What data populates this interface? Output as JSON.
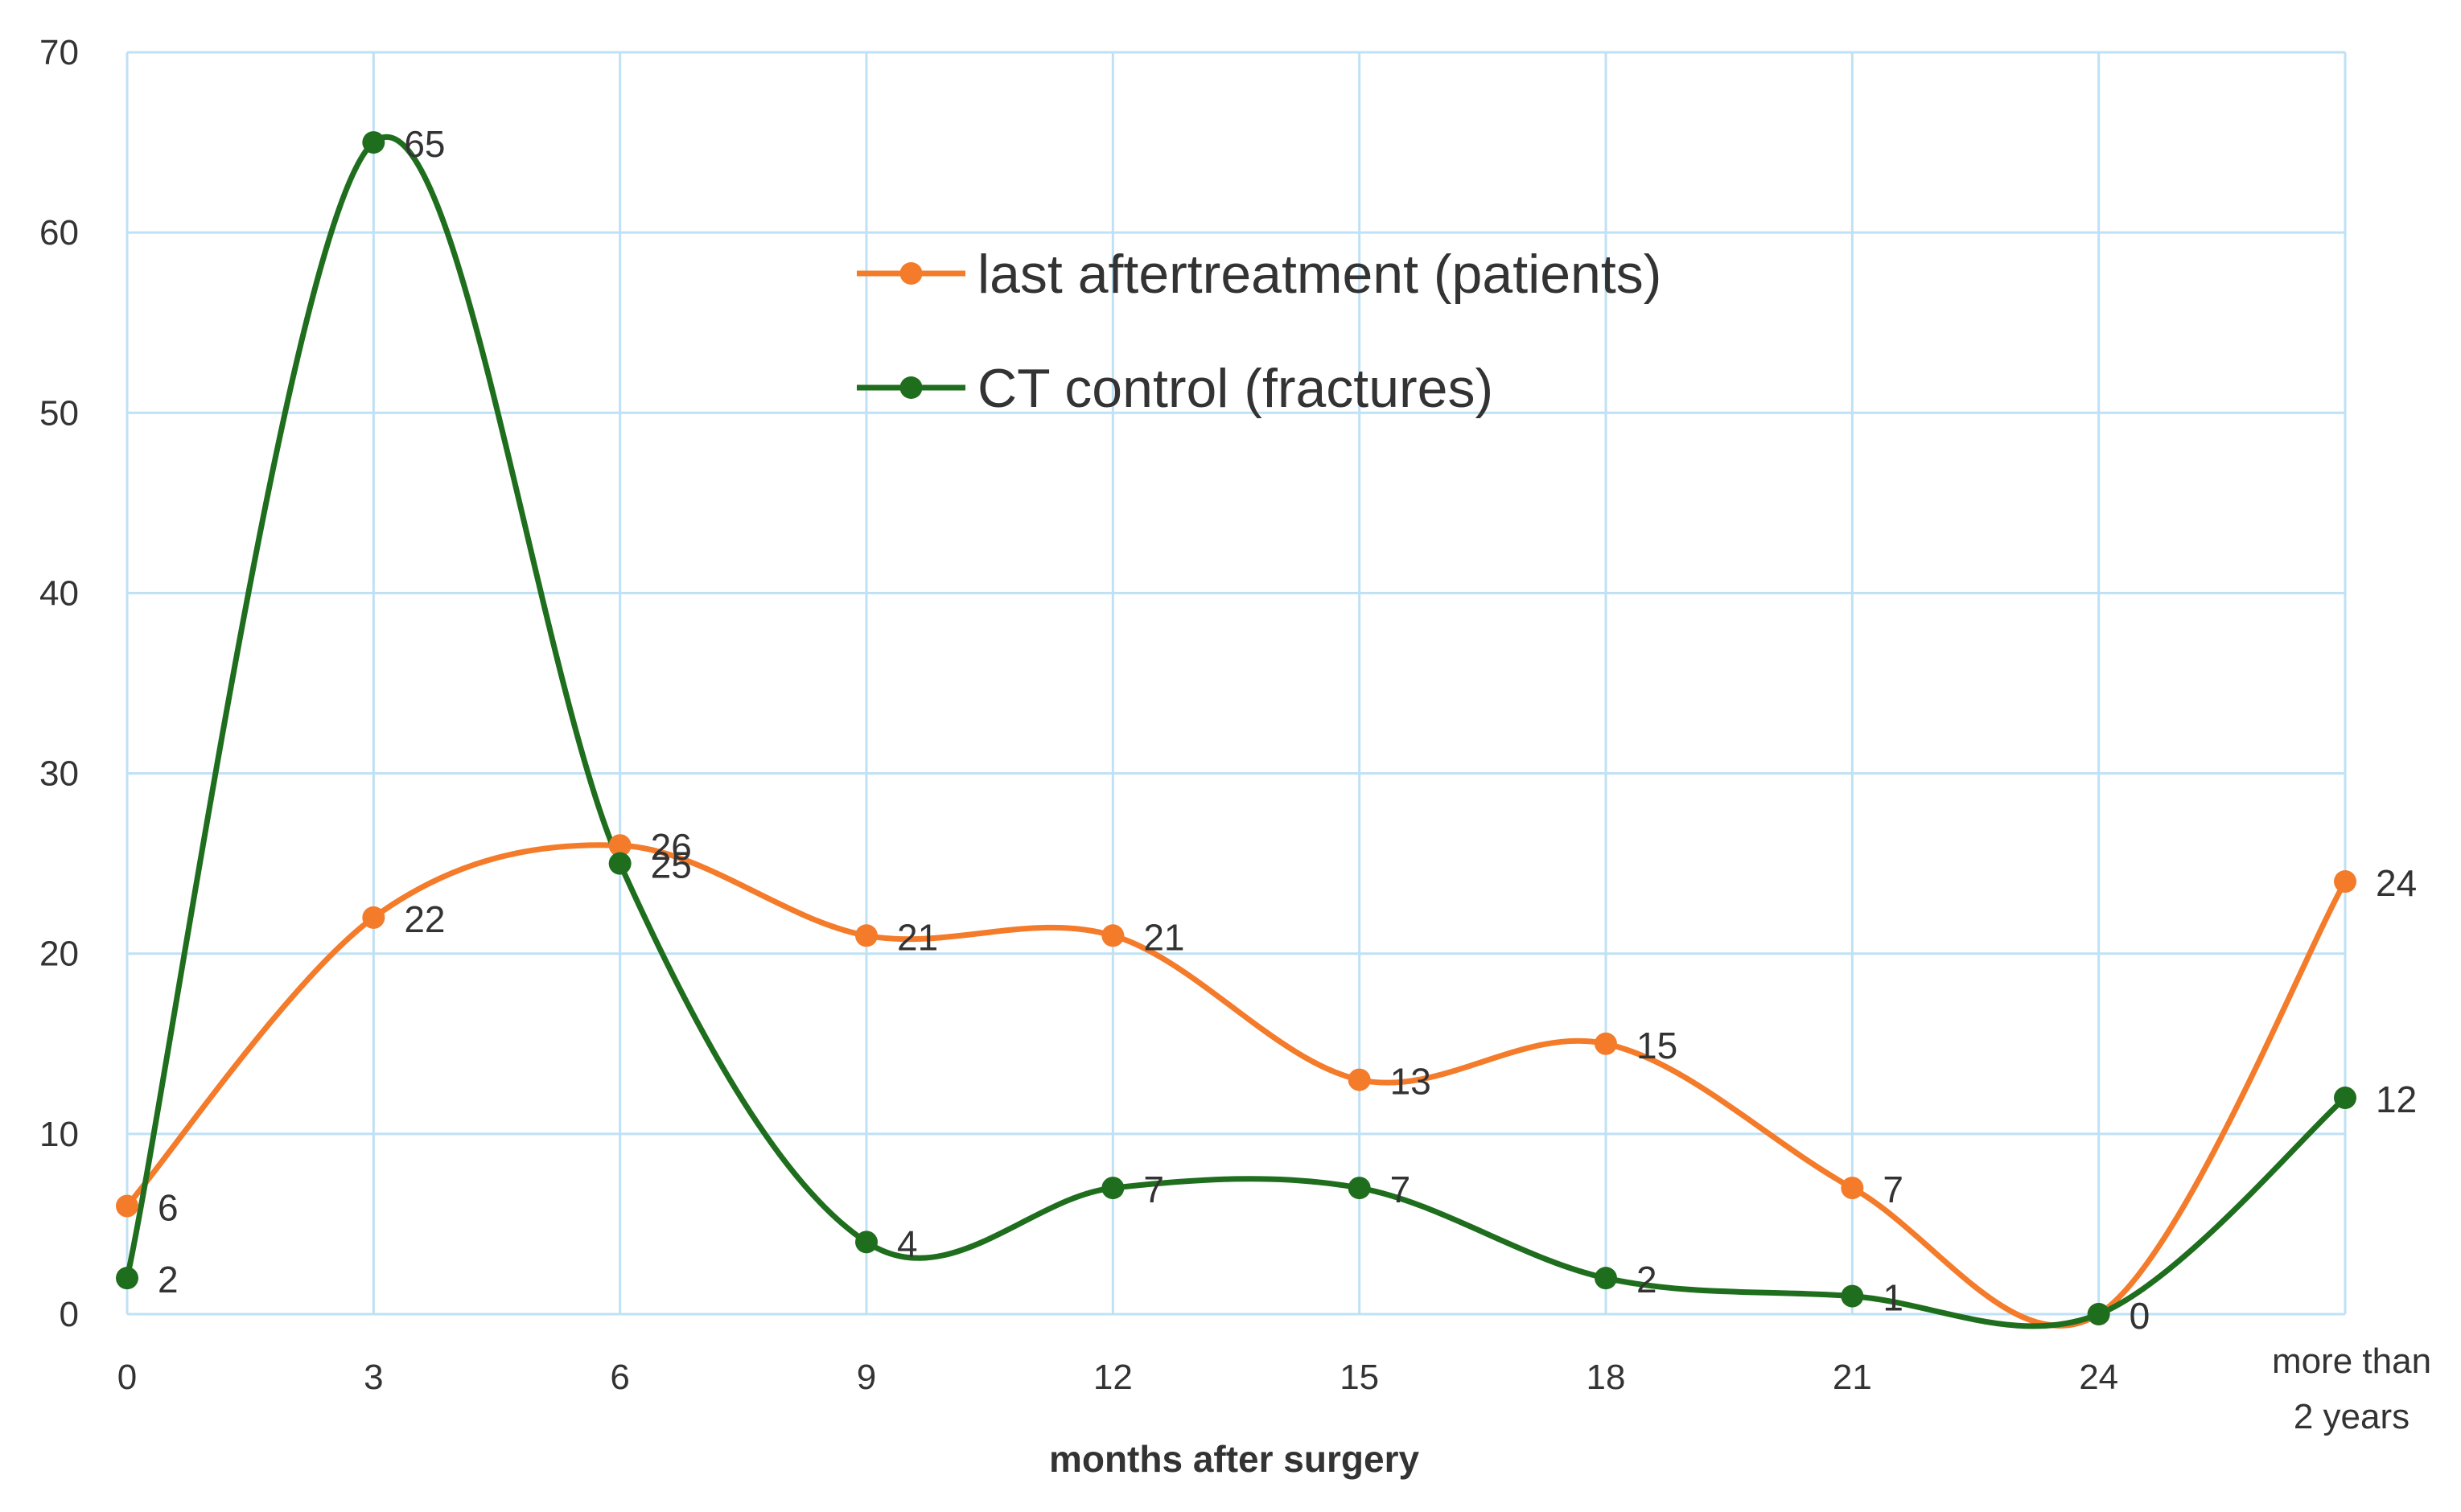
{
  "chart_data": {
    "type": "line",
    "title": "",
    "xlabel": "months after surgery",
    "ylabel": "",
    "categories": [
      "0",
      "3",
      "6",
      "9",
      "12",
      "15",
      "18",
      "21",
      "24",
      "more than 2 years"
    ],
    "category_lines": [
      [
        "0"
      ],
      [
        "3"
      ],
      [
        "6"
      ],
      [
        "9"
      ],
      [
        "12"
      ],
      [
        "15"
      ],
      [
        "18"
      ],
      [
        "21"
      ],
      [
        "24"
      ],
      [
        "more than",
        "2 years"
      ]
    ],
    "yticks": [
      0,
      10,
      20,
      30,
      40,
      50,
      60,
      70
    ],
    "ylim": [
      0,
      70
    ],
    "grid": true,
    "legend_position": "top-center",
    "series": [
      {
        "name": "last aftertreatment (patients)",
        "color": "#F47B2A",
        "values": [
          6,
          22,
          26,
          21,
          21,
          13,
          15,
          7,
          0,
          24
        ]
      },
      {
        "name": "CT control (fractures)",
        "color": "#1E6E1E",
        "values": [
          2,
          65,
          25,
          4,
          7,
          7,
          2,
          1,
          0,
          12
        ]
      }
    ]
  },
  "colors": {
    "grid": "#BFE1F5",
    "background": "#FFFFFF",
    "text": "#333333"
  }
}
